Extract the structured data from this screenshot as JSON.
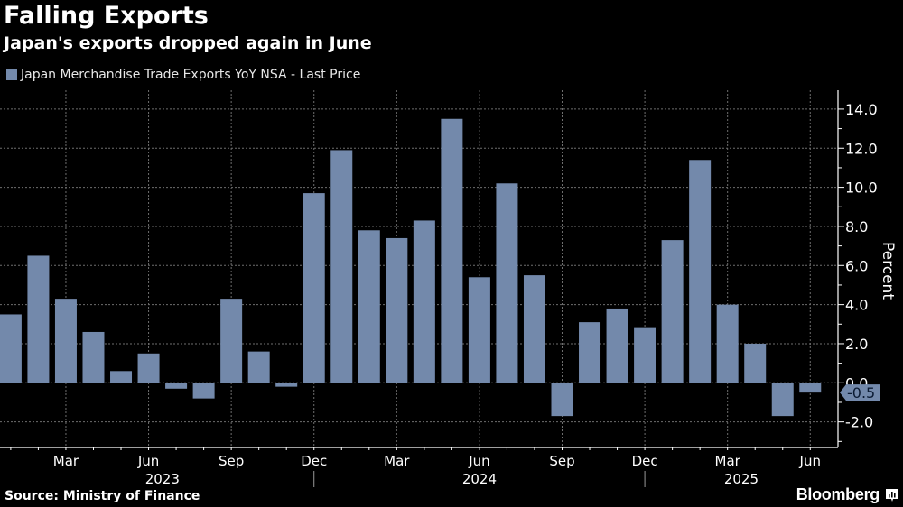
{
  "header": {
    "title": "Falling Exports",
    "subtitle": "Japan's exports dropped again in June"
  },
  "legend": {
    "label": "Japan Merchandise Trade Exports YoY NSA - Last Price",
    "color": "#7389ab"
  },
  "footer": {
    "source": "Source: Ministry of Finance",
    "brand": "Bloomberg",
    "brand_icon": "bloomberg-chart-icon"
  },
  "chart_data": {
    "type": "bar",
    "title": "Falling Exports",
    "subtitle": "Japan's exports dropped again in June",
    "xlabel": "",
    "ylabel": "Percent",
    "ylim": [
      -3.3,
      15.0
    ],
    "yticks": [
      -2.0,
      0.0,
      2.0,
      4.0,
      6.0,
      8.0,
      10.0,
      12.0,
      14.0
    ],
    "ytick_labels": [
      "-2.0",
      "0.0",
      "2.0",
      "4.0",
      "6.0",
      "8.0",
      "10.0",
      "12.0",
      "14.0"
    ],
    "grid": true,
    "y_axis_side": "right",
    "bar_color": "#7389ab",
    "categories": [
      "Jan 2023",
      "Feb 2023",
      "Mar 2023",
      "Apr 2023",
      "May 2023",
      "Jun 2023",
      "Jul 2023",
      "Aug 2023",
      "Sep 2023",
      "Oct 2023",
      "Nov 2023",
      "Dec 2023",
      "Jan 2024",
      "Feb 2024",
      "Mar 2024",
      "Apr 2024",
      "May 2024",
      "Jun 2024",
      "Jul 2024",
      "Aug 2024",
      "Sep 2024",
      "Oct 2024",
      "Nov 2024",
      "Dec 2024",
      "Jan 2025",
      "Feb 2025",
      "Mar 2025",
      "Apr 2025",
      "May 2025",
      "Jun 2025"
    ],
    "series": [
      {
        "name": "Japan Merchandise Trade Exports YoY NSA - Last Price",
        "values": [
          3.5,
          6.5,
          4.3,
          2.6,
          0.6,
          1.5,
          -0.3,
          -0.8,
          4.3,
          1.6,
          -0.2,
          9.7,
          11.9,
          7.8,
          7.4,
          8.3,
          13.5,
          5.4,
          10.2,
          5.5,
          -1.7,
          3.1,
          3.8,
          2.8,
          7.3,
          11.4,
          4.0,
          2.0,
          -1.7,
          -0.5
        ]
      }
    ],
    "x_tick_labels": [
      {
        "index": 2,
        "label": "Mar"
      },
      {
        "index": 5,
        "label": "Jun"
      },
      {
        "index": 8,
        "label": "Sep"
      },
      {
        "index": 11,
        "label": "Dec"
      },
      {
        "index": 14,
        "label": "Mar"
      },
      {
        "index": 17,
        "label": "Jun"
      },
      {
        "index": 20,
        "label": "Sep"
      },
      {
        "index": 23,
        "label": "Dec"
      },
      {
        "index": 26,
        "label": "Mar"
      },
      {
        "index": 29,
        "label": "Jun"
      }
    ],
    "year_labels": [
      {
        "label": "2023",
        "center_index": 5.5
      },
      {
        "label": "2024",
        "center_index": 17
      },
      {
        "label": "2025",
        "center_index": 26.5
      }
    ],
    "year_separators": [
      11,
      23
    ],
    "last_value_label": "-0.5"
  }
}
